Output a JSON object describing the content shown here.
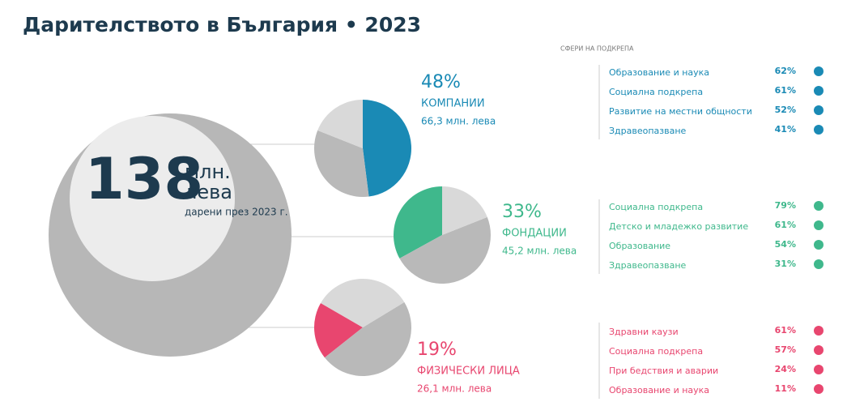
{
  "title": "Дарителството в България • 2023",
  "total": {
    "value": "138",
    "unit_line1": "млн.",
    "unit_line2": "лева",
    "note": "дарени през 2023 г."
  },
  "areas_heading": "СФЕРИ НА ПОДКРЕПА",
  "sectors": [
    {
      "share": 48,
      "share_label": "48%",
      "name": "КОМПАНИИ",
      "amount": "66,3 млн. лева",
      "color": "#1a8ab5",
      "areas": [
        {
          "name": "Образование и наука",
          "pct": "62%"
        },
        {
          "name": "Социална подкрепа",
          "pct": "61%"
        },
        {
          "name": "Развитие на местни общности",
          "pct": "52%"
        },
        {
          "name": "Здравеопазване",
          "pct": "41%"
        }
      ]
    },
    {
      "share": 33,
      "share_label": "33%",
      "name": "ФОНДАЦИИ",
      "amount": "45,2 млн. лева",
      "color": "#3fb88c",
      "areas": [
        {
          "name": "Социална подкрепа",
          "pct": "79%"
        },
        {
          "name": "Детско и младежко развитие",
          "pct": "61%"
        },
        {
          "name": "Образование",
          "pct": "54%"
        },
        {
          "name": "Здравеопазване",
          "pct": "31%"
        }
      ]
    },
    {
      "share": 19,
      "share_label": "19%",
      "name": "ФИЗИЧЕСКИ ЛИЦА",
      "amount": "26,1 млн. лева",
      "color": "#e8466f",
      "areas": [
        {
          "name": "Здравни каузи",
          "pct": "61%"
        },
        {
          "name": "Социална подкрепа",
          "pct": "57%"
        },
        {
          "name": "При бедствия и аварии",
          "pct": "24%"
        },
        {
          "name": "Образование и наука",
          "pct": "11%"
        }
      ]
    }
  ]
}
